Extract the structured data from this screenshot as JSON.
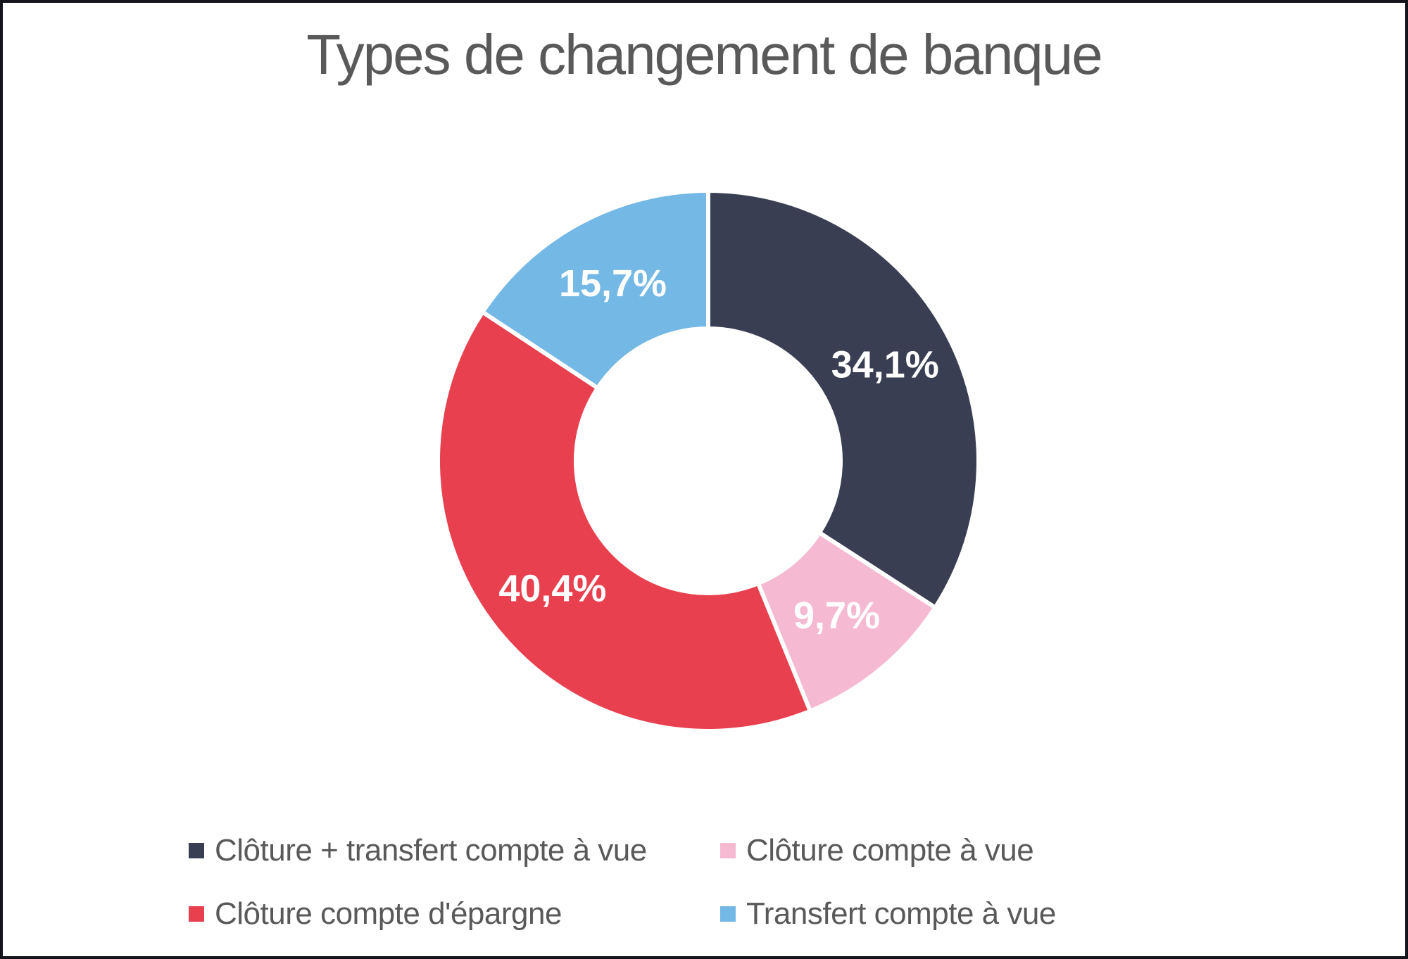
{
  "chart_data": {
    "type": "pie",
    "subtype": "donut",
    "title": "Types de changement de banque",
    "categories": [
      "Clôture + transfert compte à vue",
      "Clôture compte à vue",
      "Clôture compte d'épargne",
      "Transfert compte à vue"
    ],
    "values": [
      34.1,
      9.7,
      40.4,
      15.7
    ],
    "value_labels": [
      "34,1%",
      "9,7%",
      "40,4%",
      "15,7%"
    ],
    "colors": [
      "#3A3E52",
      "#F5BAD2",
      "#E8404E",
      "#74B8E5"
    ],
    "start_angle_deg": 0,
    "direction": "clockwise",
    "hole_ratio": 0.49,
    "grid": false,
    "legend_position": "bottom",
    "label_color": "#ffffff",
    "title_color": "#595959",
    "legend_text_color": "#595959"
  }
}
